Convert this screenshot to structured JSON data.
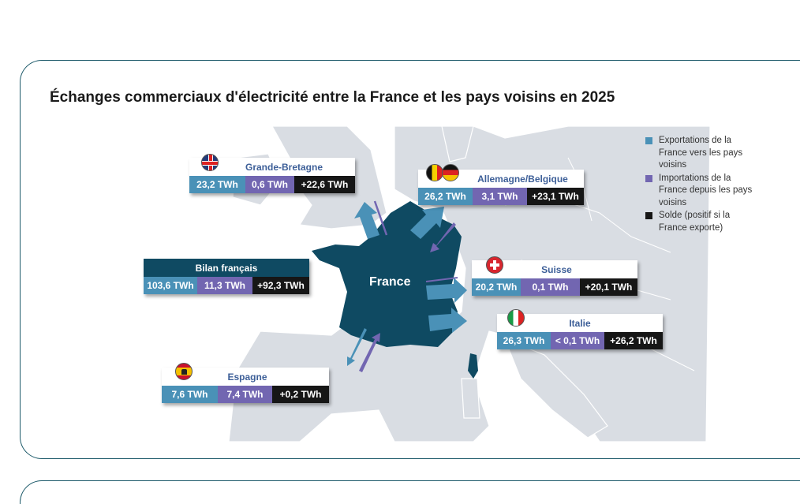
{
  "title": "Échanges commerciaux d'électricité entre la France et les pays voisins en 2025",
  "map_label": "France",
  "colors": {
    "exports": "#4a91b7",
    "imports": "#7266b1",
    "balance": "#161616",
    "france": "#0f4a62",
    "land": "#d9dde3"
  },
  "legend": [
    {
      "label": "Exportations de la France vers les pays voisins",
      "color": "#4a91b7"
    },
    {
      "label": "Importations de la France depuis les pays voisins",
      "color": "#7266b1"
    },
    {
      "label": "Solde (positif si la France exporte)",
      "color": "#161616"
    }
  ],
  "boxes": [
    {
      "id": "gb",
      "name": "Grande-Bretagne",
      "flag": "uk-flag-icon",
      "exports": "23,2 TWh",
      "imports": "0,6 TWh",
      "balance": "+22,6 TWh"
    },
    {
      "id": "de-be",
      "name": "Allemagne/Belgique",
      "flag": "belgium-germany-flag-icon",
      "exports": "26,2 TWh",
      "imports": "3,1 TWh",
      "balance": "+23,1 TWh"
    },
    {
      "id": "fr",
      "name": "Bilan français",
      "exports": "103,6 TWh",
      "imports": "11,3 TWh",
      "balance": "+92,3 TWh"
    },
    {
      "id": "ch",
      "name": "Suisse",
      "flag": "swiss-flag-icon",
      "exports": "20,2 TWh",
      "imports": "0,1 TWh",
      "balance": "+20,1 TWh"
    },
    {
      "id": "it",
      "name": "Italie",
      "flag": "italy-flag-icon",
      "exports": "26,3 TWh",
      "imports": "< 0,1 TWh",
      "balance": "+26,2 TWh"
    },
    {
      "id": "es",
      "name": "Espagne",
      "flag": "spain-flag-icon",
      "exports": "7,6 TWh",
      "imports": "7,4 TWh",
      "balance": "+0,2 TWh"
    }
  ]
}
